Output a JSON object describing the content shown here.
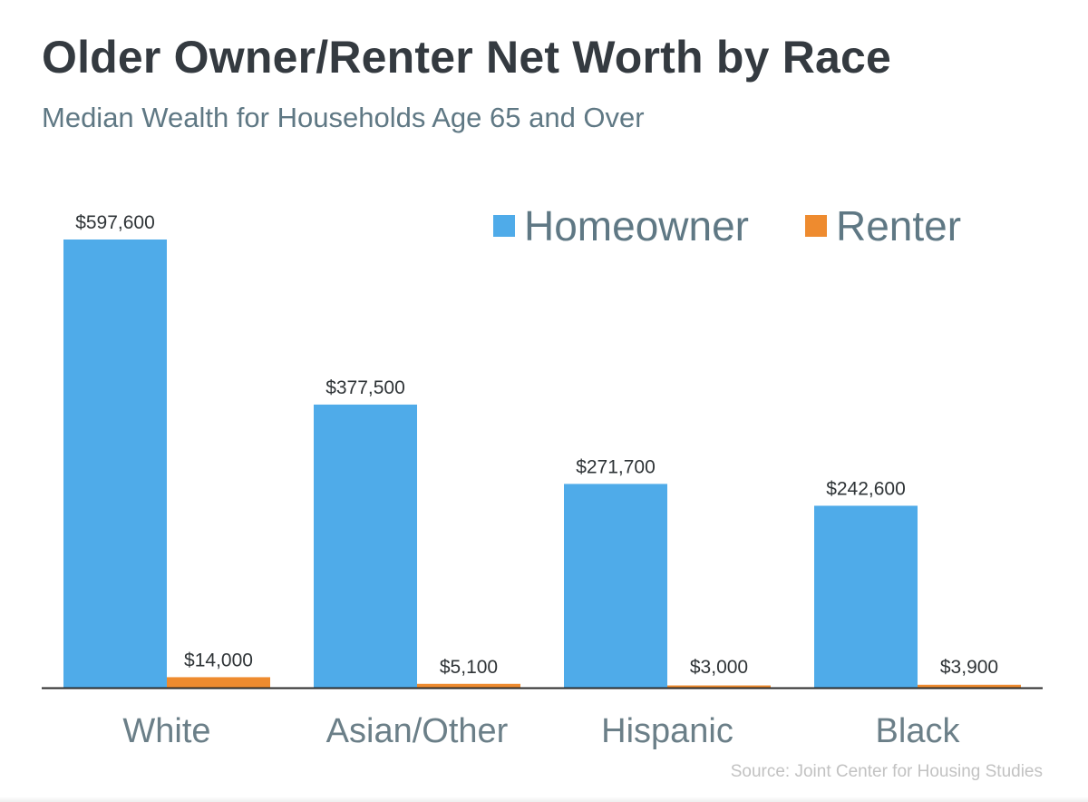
{
  "header": {
    "title": "Older Owner/Renter Net Worth by Race",
    "subtitle": "Median Wealth for Households Age 65 and Over"
  },
  "footer": {
    "source": "Source: Joint Center for Housing Studies"
  },
  "chart_data": {
    "type": "bar",
    "title": "Older Owner/Renter Net Worth by Race",
    "subtitle": "Median Wealth for Households Age 65 and Over",
    "xlabel": "",
    "ylabel": "",
    "grid": false,
    "legend_position": "top-right",
    "ylim": [
      0,
      597600
    ],
    "categories": [
      "White",
      "Asian/Other",
      "Hispanic",
      "Black"
    ],
    "series": [
      {
        "name": "Homeowner",
        "color": "#4fabe9",
        "values": [
          597600,
          377500,
          271700,
          242600
        ],
        "labels": [
          "$597,600",
          "$377,500",
          "$271,700",
          "$242,600"
        ]
      },
      {
        "name": "Renter",
        "color": "#ee8b2f",
        "values": [
          14000,
          5100,
          3000,
          3900
        ],
        "labels": [
          "$14,000",
          "$5,100",
          "$3,000",
          "$3,900"
        ]
      }
    ]
  }
}
